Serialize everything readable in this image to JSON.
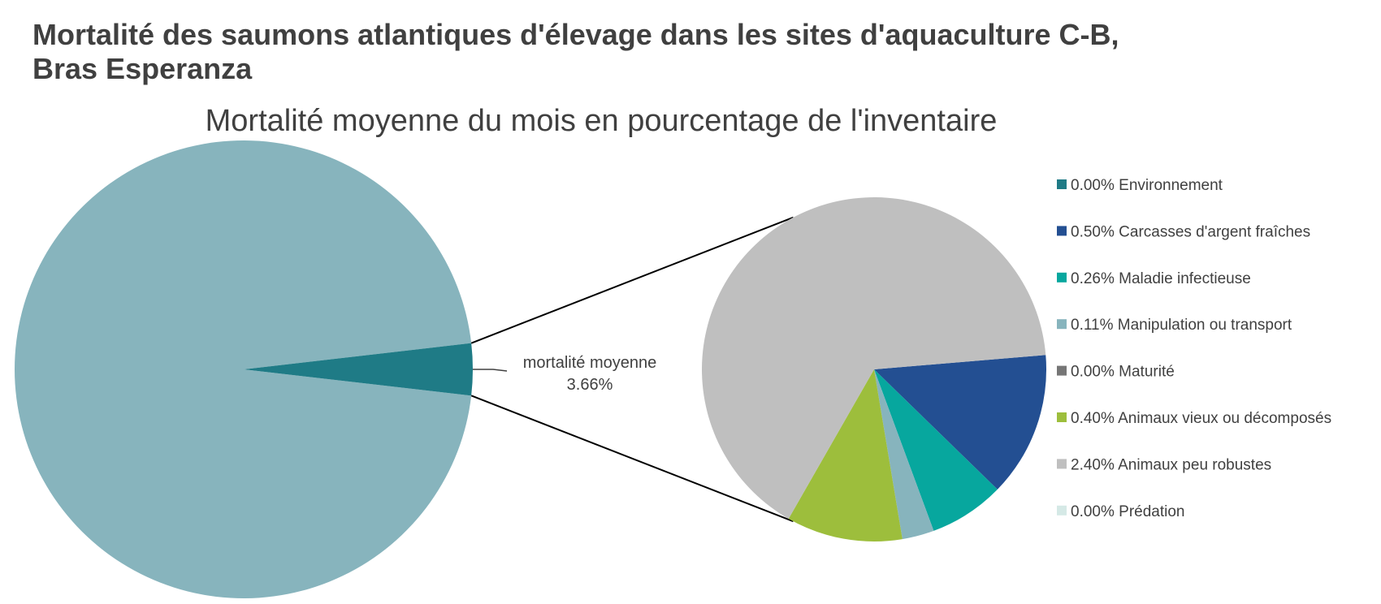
{
  "header": {
    "title_line1": "Mortalité des saumons atlantiques d'élevage dans les sites d'aquaculture C-B,",
    "title_line2": "Bras Esperanza"
  },
  "chart_data": {
    "type": "pie",
    "subtitle": "Mortalité moyenne du mois en pourcentage de l'inventaire",
    "main_pie": {
      "slices": [
        {
          "name": "",
          "value": 96.34,
          "color": "#87B4BD"
        },
        {
          "name": "mortalité moyenne",
          "value": 3.66,
          "color": "#1F7B86"
        }
      ],
      "callout_label": "mortalité moyenne",
      "callout_value": "3.66%"
    },
    "breakdown": {
      "slices": [
        {
          "name": "Environnement",
          "value": 0.0,
          "label": "0.00% Environnement",
          "color": "#1F7B86"
        },
        {
          "name": "Carcasses d'argent fraîches",
          "value": 0.5,
          "label": "0.50% Carcasses d'argent fraîches",
          "color": "#234F92"
        },
        {
          "name": "Maladie infectieuse",
          "value": 0.26,
          "label": "0.26% Maladie infectieuse",
          "color": "#07A79E"
        },
        {
          "name": "Manipulation ou transport",
          "value": 0.11,
          "label": "0.11% Manipulation ou transport",
          "color": "#87B4BD"
        },
        {
          "name": "Maturité",
          "value": 0.0,
          "label": "0.00% Maturité",
          "color": "#767676"
        },
        {
          "name": "Animaux vieux ou décomposés",
          "value": 0.4,
          "label": "0.40% Animaux vieux ou décomposés",
          "color": "#9DBE3C"
        },
        {
          "name": "Animaux peu robustes",
          "value": 2.4,
          "label": "2.40% Animaux peu robustes",
          "color": "#BFBFBF"
        },
        {
          "name": "Prédation",
          "value": 0.0,
          "label": "0.00% Prédation",
          "color": "#D5E9E6"
        }
      ]
    },
    "legend_position": "right"
  }
}
